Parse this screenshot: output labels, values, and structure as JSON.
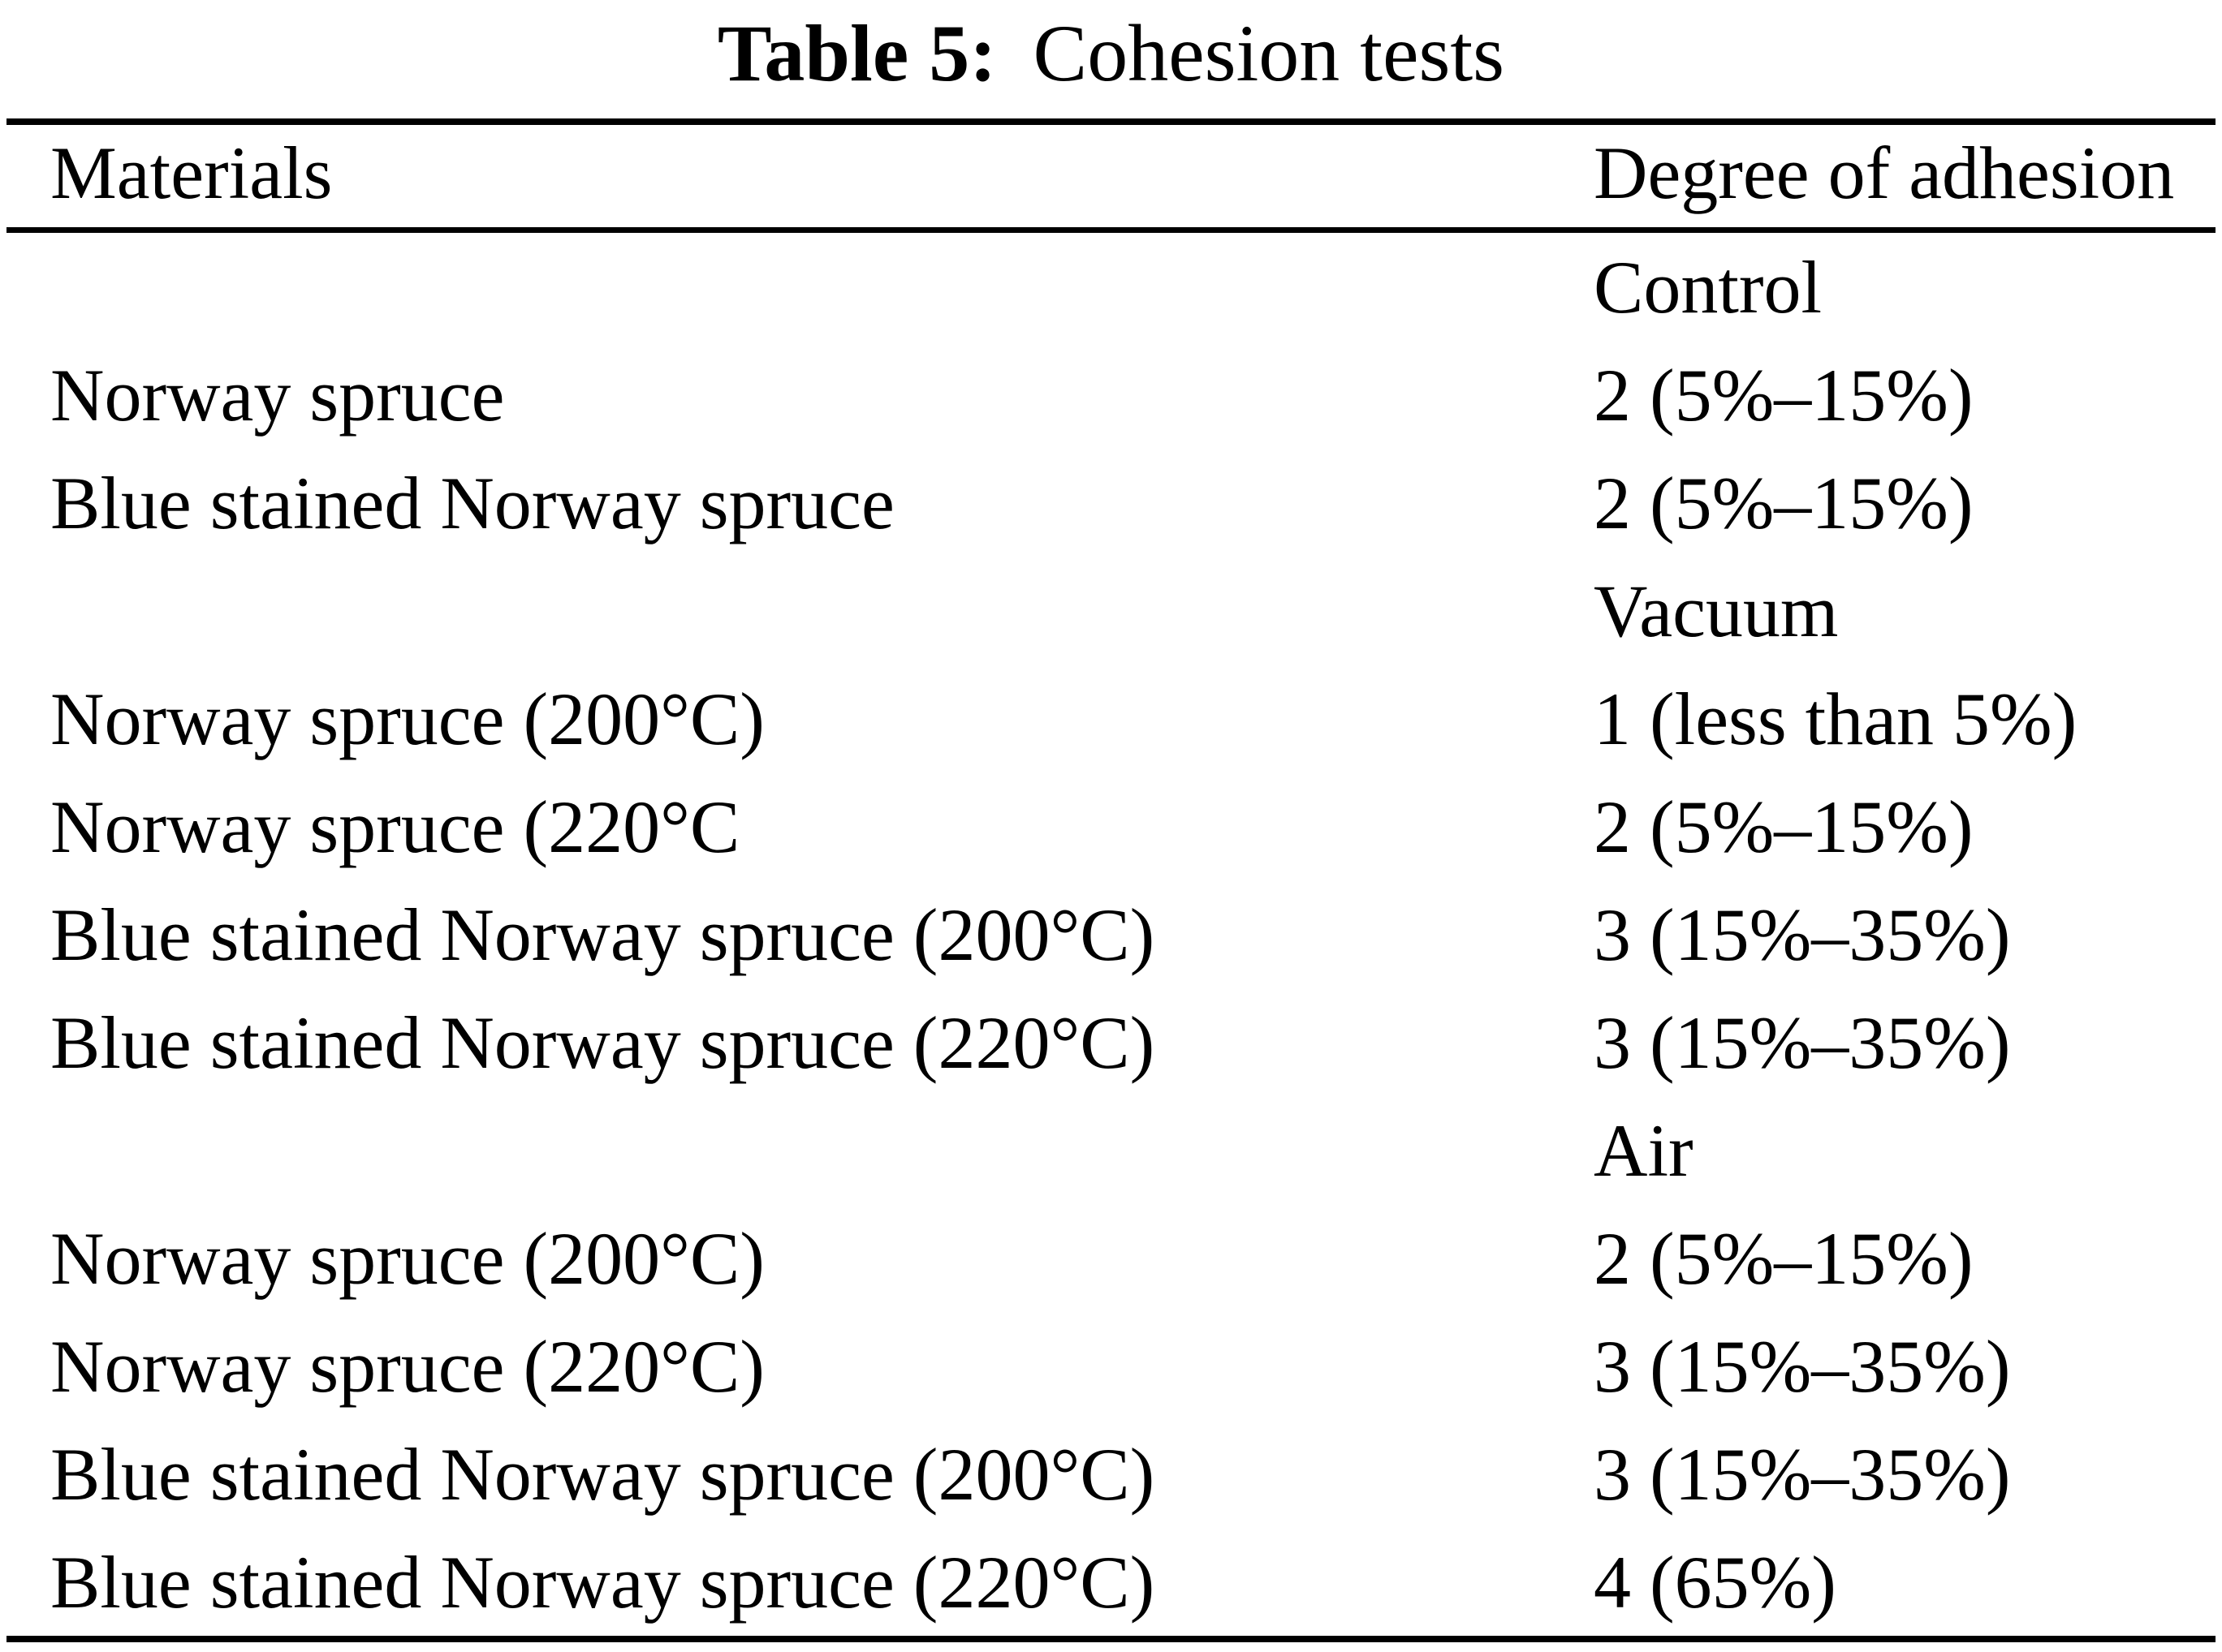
{
  "caption": {
    "label": "Table 5:",
    "title": "Cohesion tests"
  },
  "table": {
    "columns": [
      "Materials",
      "Degree of adhesion"
    ],
    "rows": [
      {
        "material": "",
        "adhesion": "Control"
      },
      {
        "material": "Norway spruce",
        "adhesion": "2 (5%–15%)"
      },
      {
        "material": "Blue stained Norway spruce",
        "adhesion": "2 (5%–15%)"
      },
      {
        "material": "",
        "adhesion": "Vacuum"
      },
      {
        "material": "Norway spruce (200°C)",
        "adhesion": "1 (less than 5%)"
      },
      {
        "material": "Norway spruce (220°C",
        "adhesion": "2 (5%–15%)"
      },
      {
        "material": "Blue stained Norway spruce (200°C)",
        "adhesion": "3 (15%–35%)"
      },
      {
        "material": "Blue stained Norway spruce (220°C)",
        "adhesion": "3 (15%–35%)"
      },
      {
        "material": "",
        "adhesion": "Air"
      },
      {
        "material": "Norway spruce (200°C)",
        "adhesion": "2 (5%–15%)"
      },
      {
        "material": "Norway spruce (220°C)",
        "adhesion": "3 (15%–35%)"
      },
      {
        "material": "Blue stained Norway spruce (200°C)",
        "adhesion": "3 (15%–35%)"
      },
      {
        "material": "Blue stained Norway spruce (220°C)",
        "adhesion": "4 (65%)"
      }
    ]
  }
}
